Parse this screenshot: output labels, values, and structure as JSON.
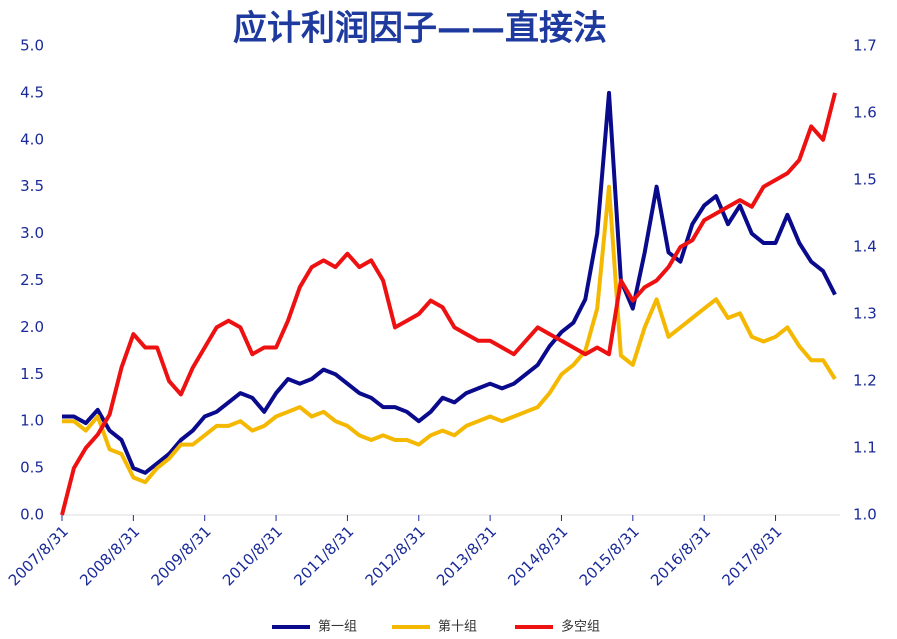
{
  "chart_data": {
    "type": "line",
    "title": "应计利润因子——直接法",
    "categories": [
      "2007/8/31",
      null,
      null,
      null,
      null,
      null,
      "2008/8/31",
      null,
      null,
      null,
      null,
      null,
      "2009/8/31",
      null,
      null,
      null,
      null,
      null,
      "2010/8/31",
      null,
      null,
      null,
      null,
      null,
      "2011/8/31",
      null,
      null,
      null,
      null,
      null,
      "2012/8/31",
      null,
      null,
      null,
      null,
      null,
      "2013/8/31",
      null,
      null,
      null,
      null,
      null,
      "2014/8/31",
      null,
      null,
      null,
      null,
      null,
      "2015/8/31",
      null,
      null,
      null,
      null,
      null,
      "2016/8/31",
      null,
      null,
      null,
      null,
      null,
      "2017/8/31",
      null,
      null,
      null,
      null,
      null
    ],
    "series": [
      {
        "name": "第一组",
        "color": "#0a0a8c",
        "values": [
          1.05,
          1.05,
          0.98,
          1.12,
          0.9,
          0.8,
          0.5,
          0.45,
          0.55,
          0.65,
          0.8,
          0.9,
          1.05,
          1.1,
          1.2,
          1.3,
          1.25,
          1.1,
          1.3,
          1.45,
          1.4,
          1.45,
          1.55,
          1.5,
          1.4,
          1.3,
          1.25,
          1.15,
          1.15,
          1.1,
          1.0,
          1.1,
          1.25,
          1.2,
          1.3,
          1.35,
          1.4,
          1.35,
          1.4,
          1.5,
          1.6,
          1.8,
          1.95,
          2.05,
          2.3,
          3.0,
          4.5,
          2.5,
          2.2,
          2.8,
          3.5,
          2.8,
          2.7,
          3.1,
          3.3,
          3.4,
          3.1,
          3.3,
          3.0,
          2.9,
          2.9,
          3.2,
          2.9,
          2.7,
          2.6,
          2.35
        ]
      },
      {
        "name": "第十组",
        "color": "#f5b800",
        "values": [
          1.0,
          1.0,
          0.9,
          1.05,
          0.7,
          0.65,
          0.4,
          0.35,
          0.5,
          0.6,
          0.75,
          0.75,
          0.85,
          0.95,
          0.95,
          1.0,
          0.9,
          0.95,
          1.05,
          1.1,
          1.15,
          1.05,
          1.1,
          1.0,
          0.95,
          0.85,
          0.8,
          0.85,
          0.8,
          0.8,
          0.75,
          0.85,
          0.9,
          0.85,
          0.95,
          1.0,
          1.05,
          1.0,
          1.05,
          1.1,
          1.15,
          1.3,
          1.5,
          1.6,
          1.75,
          2.2,
          3.5,
          1.7,
          1.6,
          2.0,
          2.3,
          1.9,
          2.0,
          2.1,
          2.2,
          2.3,
          2.1,
          2.15,
          1.9,
          1.85,
          1.9,
          2.0,
          1.8,
          1.65,
          1.65,
          1.45
        ]
      },
      {
        "name": "多空组",
        "color": "#ee1111",
        "axis": "y2",
        "values": [
          1.0,
          1.07,
          1.1,
          1.12,
          1.15,
          1.22,
          1.27,
          1.25,
          1.25,
          1.2,
          1.18,
          1.22,
          1.25,
          1.28,
          1.29,
          1.28,
          1.24,
          1.25,
          1.25,
          1.29,
          1.34,
          1.37,
          1.38,
          1.37,
          1.39,
          1.37,
          1.38,
          1.35,
          1.28,
          1.29,
          1.3,
          1.32,
          1.31,
          1.28,
          1.27,
          1.26,
          1.26,
          1.25,
          1.24,
          1.26,
          1.28,
          1.27,
          1.26,
          1.25,
          1.24,
          1.25,
          1.24,
          1.35,
          1.32,
          1.34,
          1.35,
          1.37,
          1.4,
          1.41,
          1.44,
          1.45,
          1.46,
          1.47,
          1.46,
          1.49,
          1.5,
          1.51,
          1.53,
          1.58,
          1.56,
          1.63
        ]
      }
    ],
    "ylim": [
      0,
      5
    ],
    "yticks": [
      {
        "value": 0,
        "label": "0.0"
      },
      {
        "value": 0.5,
        "label": "0.5"
      },
      {
        "value": 1,
        "label": "1.0"
      },
      {
        "value": 1.5,
        "label": "1.5"
      },
      {
        "value": 2,
        "label": "2.0"
      },
      {
        "value": 2.5,
        "label": "2.5"
      },
      {
        "value": 3,
        "label": "3.0"
      },
      {
        "value": 3.5,
        "label": "3.5"
      },
      {
        "value": 4,
        "label": "4.0"
      },
      {
        "value": 4.5,
        "label": "4.5"
      },
      {
        "value": 5,
        "label": "5.0"
      }
    ],
    "y2lim": [
      1.0,
      1.7
    ],
    "y2ticks": [
      {
        "value": 1,
        "label": "1.0"
      },
      1.1,
      1.2,
      1.3,
      1.4,
      1.5,
      1.6,
      1.7
    ],
    "legend": "bottom"
  }
}
